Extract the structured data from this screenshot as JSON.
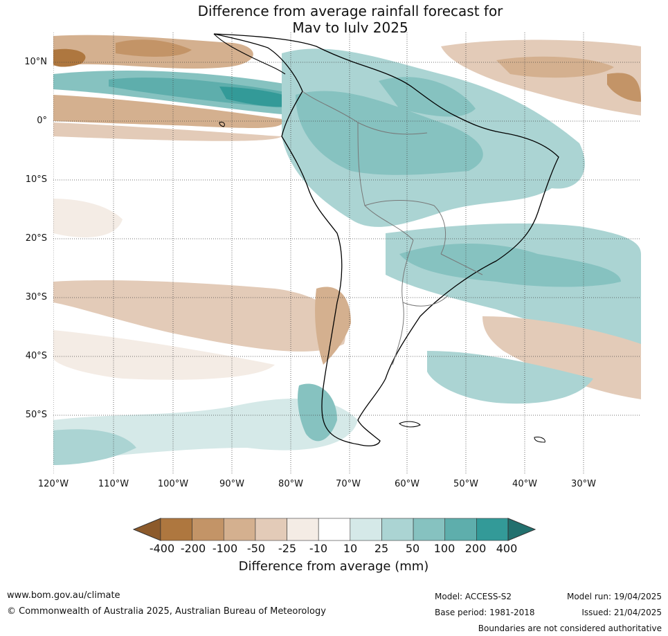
{
  "title": {
    "line1": "Difference from average rainfall forecast for",
    "line2": "May to July 2025"
  },
  "map": {
    "lat_labels": [
      "10°N",
      "0°",
      "10°S",
      "20°S",
      "30°S",
      "40°S",
      "50°S"
    ],
    "lon_labels": [
      "120°W",
      "110°W",
      "100°W",
      "90°W",
      "80°W",
      "70°W",
      "60°W",
      "50°W",
      "40°W",
      "30°W"
    ]
  },
  "colorbar": {
    "ticks": [
      "-400",
      "-200",
      "-100",
      "-50",
      "-25",
      "-10",
      "10",
      "25",
      "50",
      "100",
      "200",
      "400"
    ],
    "colors": [
      "#8c5a2b",
      "#ae773f",
      "#c39467",
      "#d4b08f",
      "#e3cbb8",
      "#f4ece5",
      "#ffffff",
      "#d5e9e8",
      "#abd4d3",
      "#86c2c0",
      "#5eaeac",
      "#339a98",
      "#22706e"
    ],
    "label": "Difference from average (mm)"
  },
  "footer": {
    "url": "www.bom.gov.au/climate",
    "copyright": "© Commonwealth of Australia 2025, Australian Bureau of Meteorology",
    "model": "Model: ACCESS-S2",
    "base_period": "Base period: 1981-2018",
    "model_run": "Model run: 19/04/2025",
    "issued": "Issued: 21/04/2025",
    "disclaimer": "Boundaries are not considered authoritative"
  }
}
